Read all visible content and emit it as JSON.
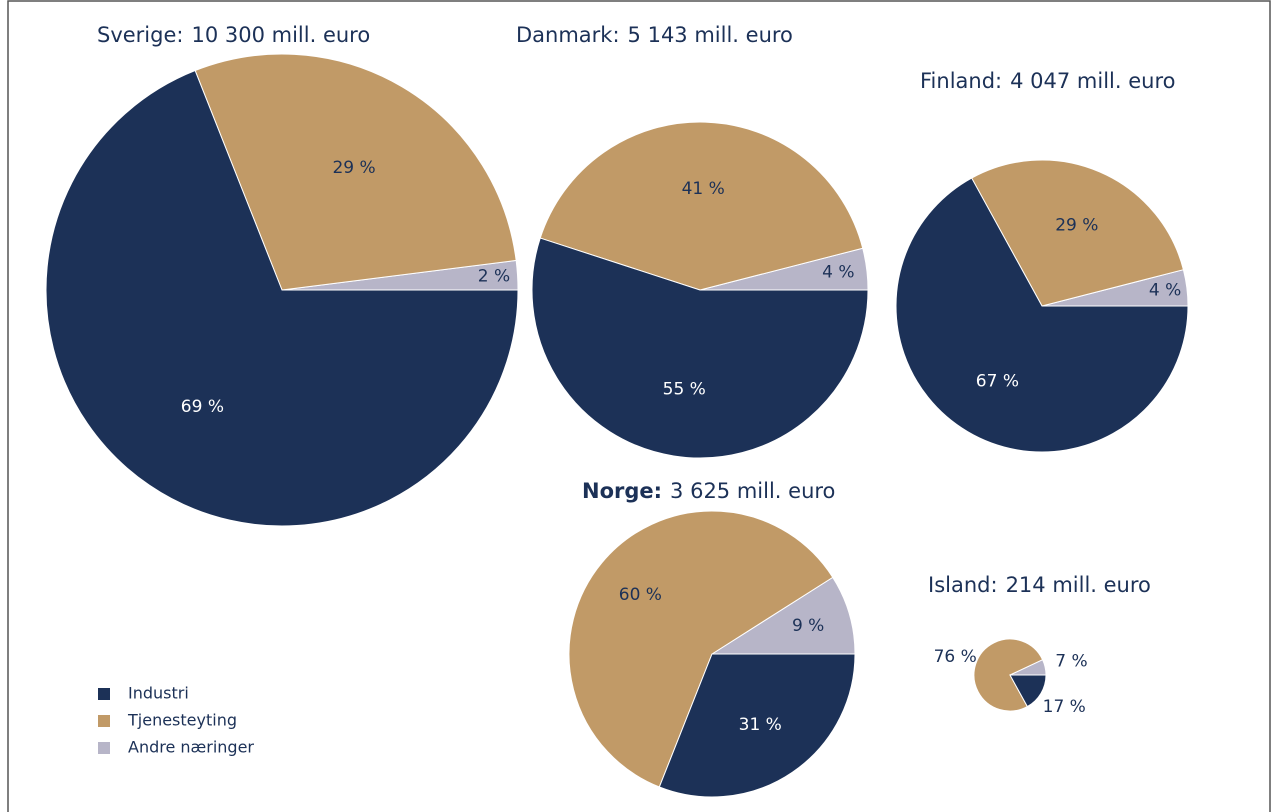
{
  "legend": {
    "labels": [
      "Industri",
      "Tjenesteyting",
      "Andre næringer"
    ],
    "colors": [
      "#1c3157",
      "#c19a67",
      "#b7b5c8"
    ]
  },
  "chart_data": [
    {
      "type": "pie",
      "title": "Sverige:",
      "subtitle": "10 300 mill. euro",
      "values": [
        69,
        29,
        2
      ],
      "value_labels": [
        "69 %",
        "29 %",
        "2 %"
      ]
    },
    {
      "type": "pie",
      "title": "Danmark:",
      "subtitle": "5 143 mill. euro",
      "values": [
        55,
        41,
        4
      ],
      "value_labels": [
        "55 %",
        "41 %",
        "4 %"
      ]
    },
    {
      "type": "pie",
      "title": "Finland:",
      "subtitle": "4 047 mill. euro",
      "values": [
        67,
        29,
        4
      ],
      "value_labels": [
        "67 %",
        "29 %",
        "4 %"
      ]
    },
    {
      "type": "pie",
      "title": "Norge:",
      "title_bold": true,
      "subtitle": "3 625 mill. euro",
      "values": [
        31,
        60,
        9
      ],
      "value_labels": [
        "31 %",
        "60 %",
        "9 %"
      ]
    },
    {
      "type": "pie",
      "title": "Island:",
      "subtitle": "214 mill. euro",
      "values": [
        17,
        76,
        7
      ],
      "value_labels": [
        "17 %",
        "76 %",
        "7 %"
      ]
    }
  ]
}
